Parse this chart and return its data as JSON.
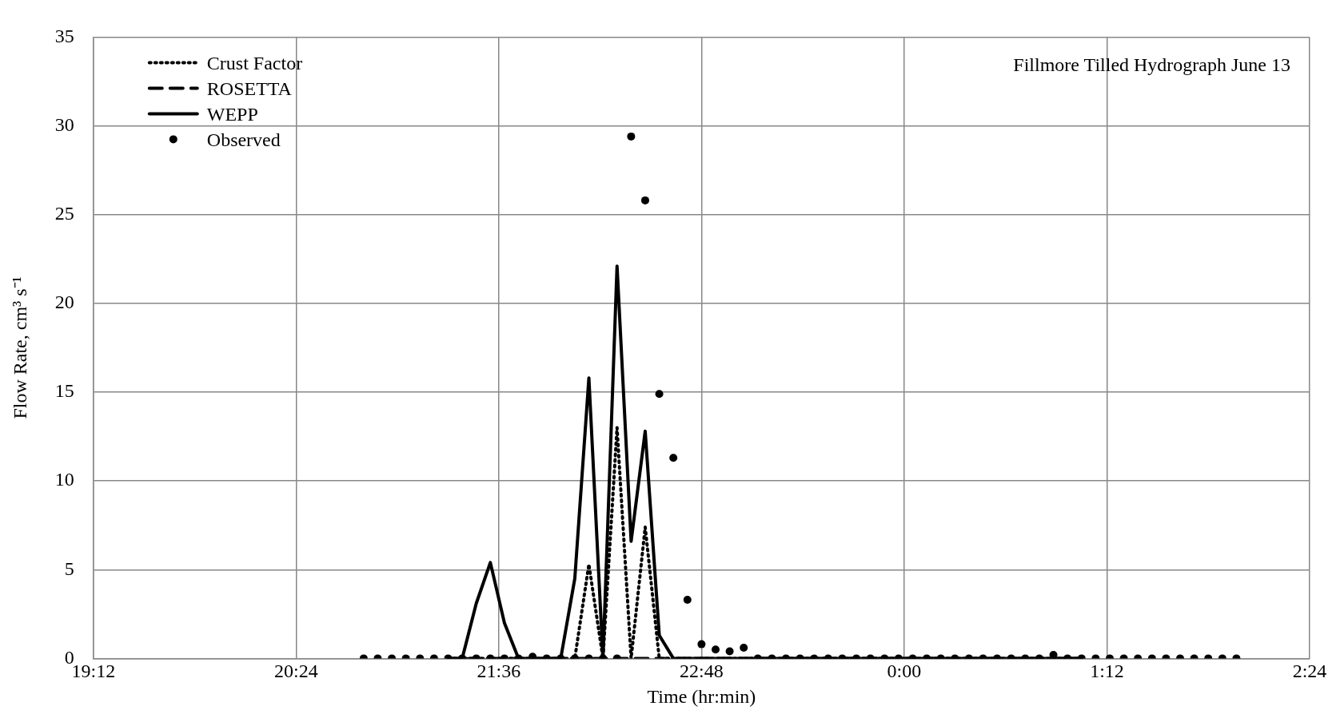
{
  "chart_data": {
    "type": "line",
    "title": "Fillmore Tilled Hydrograph June 13",
    "xlabel": "Time (hr:min)",
    "ylabel": "Flow Rate, cm³ s⁻¹",
    "xlim": [
      "--06-13T19:12",
      "--06-14T02:24"
    ],
    "xticks": [
      {
        "value": "--06-13T19:12",
        "label": "19:12"
      },
      {
        "value": "--06-13T20:24",
        "label": "20:24"
      },
      {
        "value": "--06-13T21:36",
        "label": "21:36"
      },
      {
        "value": "--06-13T22:48",
        "label": "22:48"
      },
      {
        "value": "--06-14T00:00",
        "label": "0:00"
      },
      {
        "value": "--06-14T01:12",
        "label": "1:12"
      },
      {
        "value": "--06-14T02:24",
        "label": "2:24"
      }
    ],
    "ylim": [
      0,
      35
    ],
    "yticks": [
      0,
      5,
      10,
      15,
      20,
      25,
      30,
      35
    ],
    "grid": true,
    "legend": "top left",
    "series": [
      {
        "name": "Crust Factor",
        "type": "line",
        "line_style": "dotted",
        "marker": "none",
        "color": "#000000",
        "x": [
          "--06-13T21:18",
          "--06-13T22:03",
          "--06-13T22:08",
          "--06-13T22:13",
          "--06-13T22:18",
          "--06-13T22:23",
          "--06-13T22:28",
          "--06-13T22:33",
          "--06-14T01:03"
        ],
        "values": [
          0,
          0,
          5.3,
          0,
          13,
          0,
          7.4,
          0,
          0
        ]
      },
      {
        "name": "ROSETTA",
        "type": "line",
        "line_style": "dashed",
        "marker": "none",
        "color": "#000000",
        "x": [
          "--06-13T21:18",
          "--06-14T01:03"
        ],
        "values": [
          0,
          0
        ]
      },
      {
        "name": "WEPP",
        "type": "line",
        "line_style": "solid",
        "marker": "none",
        "color": "#000000",
        "x": [
          "--06-13T21:18",
          "--06-13T21:23",
          "--06-13T21:28",
          "--06-13T21:33",
          "--06-13T21:38",
          "--06-13T21:43",
          "--06-13T21:58",
          "--06-13T22:03",
          "--06-13T22:08",
          "--06-13T22:13",
          "--06-13T22:18",
          "--06-13T22:23",
          "--06-13T22:28",
          "--06-13T22:33",
          "--06-13T22:38",
          "--06-14T01:03"
        ],
        "values": [
          0,
          0,
          3.1,
          5.4,
          2,
          0,
          0,
          4.5,
          15.8,
          0,
          22.1,
          6.6,
          12.8,
          1.3,
          0,
          0
        ]
      },
      {
        "name": "Observed",
        "type": "scatter",
        "marker": "circle",
        "color": "#000000",
        "x": [
          "--06-13T20:48",
          "--06-13T20:53",
          "--06-13T20:58",
          "--06-13T21:03",
          "--06-13T21:08",
          "--06-13T21:13",
          "--06-13T21:18",
          "--06-13T21:23",
          "--06-13T21:28",
          "--06-13T21:33",
          "--06-13T21:38",
          "--06-13T21:43",
          "--06-13T21:48",
          "--06-13T21:53",
          "--06-13T21:58",
          "--06-13T22:03",
          "--06-13T22:08",
          "--06-13T22:13",
          "--06-13T22:18",
          "--06-13T22:23",
          "--06-13T22:28",
          "--06-13T22:33",
          "--06-13T22:38",
          "--06-13T22:43",
          "--06-13T22:48",
          "--06-13T22:53",
          "--06-13T22:58",
          "--06-13T23:03",
          "--06-13T23:08",
          "--06-13T23:13",
          "--06-13T23:18",
          "--06-13T23:23",
          "--06-13T23:28",
          "--06-13T23:33",
          "--06-13T23:38",
          "--06-13T23:43",
          "--06-13T23:48",
          "--06-13T23:53",
          "--06-13T23:58",
          "--06-14T00:03",
          "--06-14T00:08",
          "--06-14T00:13",
          "--06-14T00:18",
          "--06-14T00:23",
          "--06-14T00:28",
          "--06-14T00:33",
          "--06-14T00:38",
          "--06-14T00:43",
          "--06-14T00:48",
          "--06-14T00:53",
          "--06-14T00:58",
          "--06-14T01:03",
          "--06-14T01:08",
          "--06-14T01:13",
          "--06-14T01:18",
          "--06-14T01:23",
          "--06-14T01:28",
          "--06-14T01:33",
          "--06-14T01:38",
          "--06-14T01:43",
          "--06-14T01:48",
          "--06-14T01:53",
          "--06-14T01:58"
        ],
        "values": [
          0,
          0,
          0,
          0,
          0,
          0,
          0,
          0,
          0,
          0,
          0,
          0,
          0.1,
          0,
          0,
          0,
          0,
          0,
          0,
          29.4,
          25.8,
          14.9,
          11.3,
          3.3,
          0.8,
          0.5,
          0.4,
          0.6,
          0,
          0,
          0,
          0,
          0,
          0,
          0,
          0,
          0,
          0,
          0,
          0,
          0,
          0,
          0,
          0,
          0,
          0,
          0,
          0,
          0,
          0.2,
          0,
          0,
          0,
          0,
          0,
          0,
          0,
          0,
          0,
          0,
          0,
          0,
          0
        ]
      }
    ]
  }
}
